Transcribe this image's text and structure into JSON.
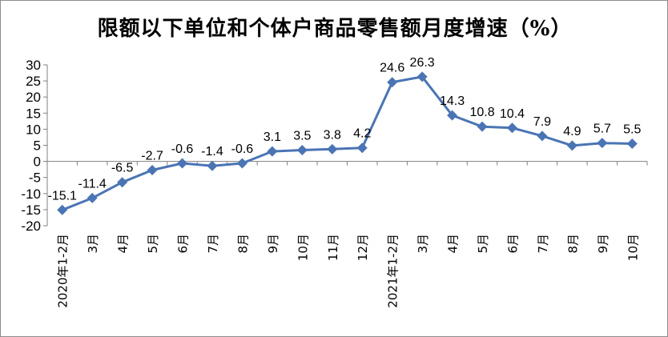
{
  "chart_data": {
    "type": "line",
    "title": "限额以下单位和个体户商品零售额月度增速（%）",
    "xlabel": "",
    "ylabel": "",
    "ylim": [
      -20,
      30
    ],
    "y_ticks": [
      30,
      25,
      20,
      15,
      10,
      5,
      0,
      -5,
      -10,
      -15,
      -20
    ],
    "grid": false,
    "legend": "none",
    "categories": [
      "2020年1-2月",
      "3月",
      "4月",
      "5月",
      "6月",
      "7月",
      "8月",
      "9月",
      "10月",
      "11月",
      "12月",
      "2021年1-2月",
      "3月",
      "4月",
      "5月",
      "6月",
      "7月",
      "8月",
      "9月",
      "10月"
    ],
    "series": [
      {
        "values": [
          -15.1,
          -11.4,
          -6.5,
          -2.7,
          -0.6,
          -1.4,
          -0.6,
          3.1,
          3.5,
          3.8,
          4.2,
          24.6,
          26.3,
          14.3,
          10.8,
          10.4,
          7.9,
          4.9,
          5.7,
          5.5
        ],
        "labels": [
          "-15.1",
          "-11.4",
          "-6.5",
          "-2.7",
          "-0.6",
          "-1.4",
          "-0.6",
          "3.1",
          "3.5",
          "3.8",
          "4.2",
          "24.6",
          "26.3",
          "14.3",
          "10.8",
          "10.4",
          "7.9",
          "4.9",
          "5.7",
          "5.5"
        ],
        "color": "#4a74b4"
      }
    ]
  }
}
